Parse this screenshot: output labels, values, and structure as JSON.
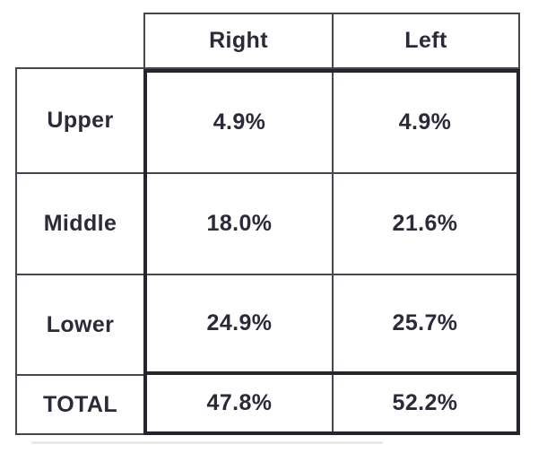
{
  "chart_data": {
    "type": "table",
    "title": "",
    "unit": "%",
    "columns": [
      "",
      "Right",
      "Left"
    ],
    "rows": [
      [
        "Upper",
        "4.9%",
        "4.9%"
      ],
      [
        "Middle",
        "18.0%",
        "21.6%"
      ],
      [
        "Lower",
        "24.9%",
        "25.7%"
      ],
      [
        "TOTAL",
        "47.8%",
        "52.2%"
      ]
    ],
    "series": [
      {
        "name": "Right",
        "values": [
          4.9,
          18.0,
          24.9
        ],
        "total": 47.8
      },
      {
        "name": "Left",
        "values": [
          4.9,
          21.6,
          25.7
        ],
        "total": 52.2
      }
    ],
    "categories": [
      "Upper",
      "Middle",
      "Lower"
    ],
    "layout_hints": {
      "header_row_border": "thin",
      "label_column_border": "thin",
      "data_block_border": "thick",
      "total_row_border": "thick",
      "grid": true
    }
  },
  "colors": {
    "bg": "#ffffff",
    "thin": "#46464f",
    "thick": "#25252f",
    "text": "#2a2a38"
  }
}
